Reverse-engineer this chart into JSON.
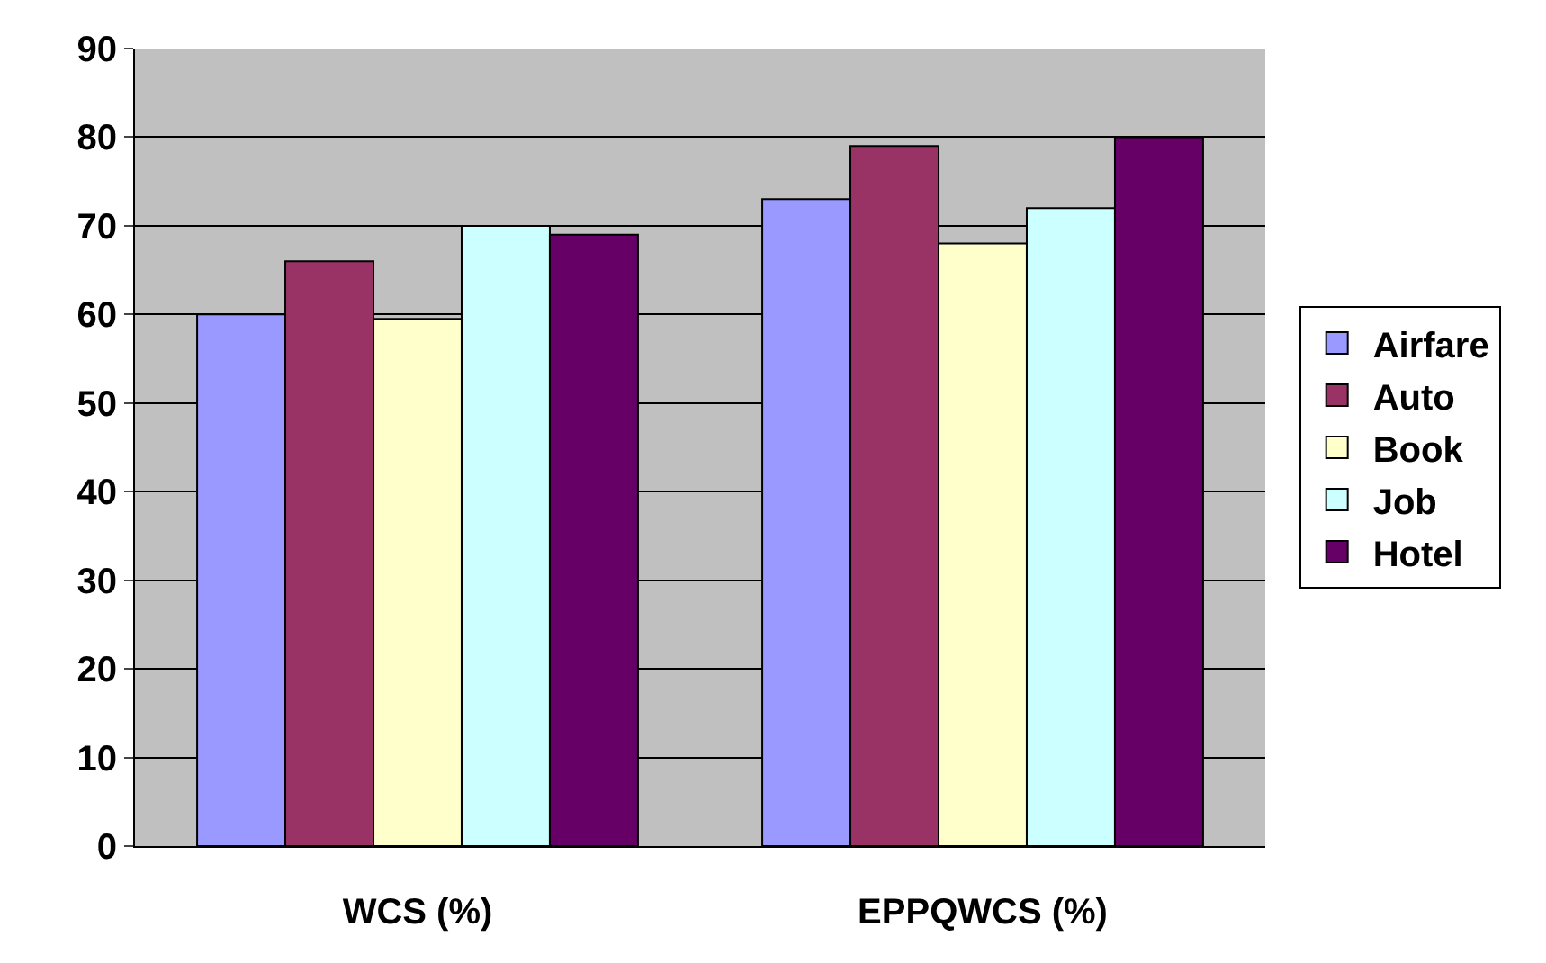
{
  "chart_data": {
    "type": "bar",
    "categories": [
      "WCS (%)",
      "EPPQWCS (%)"
    ],
    "series": [
      {
        "name": "Airfare",
        "color": "#9999ff",
        "values": [
          60,
          73
        ]
      },
      {
        "name": "Auto",
        "color": "#993366",
        "values": [
          66,
          79
        ]
      },
      {
        "name": "Book",
        "color": "#ffffcc",
        "values": [
          59.5,
          68
        ]
      },
      {
        "name": "Job",
        "color": "#ccffff",
        "values": [
          70,
          72
        ]
      },
      {
        "name": "Hotel",
        "color": "#660066",
        "values": [
          69,
          80
        ]
      }
    ],
    "ylim": [
      0,
      90
    ],
    "yticks": [
      0,
      10,
      20,
      30,
      40,
      50,
      60,
      70,
      80,
      90
    ],
    "grid": "y",
    "legend": "right"
  }
}
